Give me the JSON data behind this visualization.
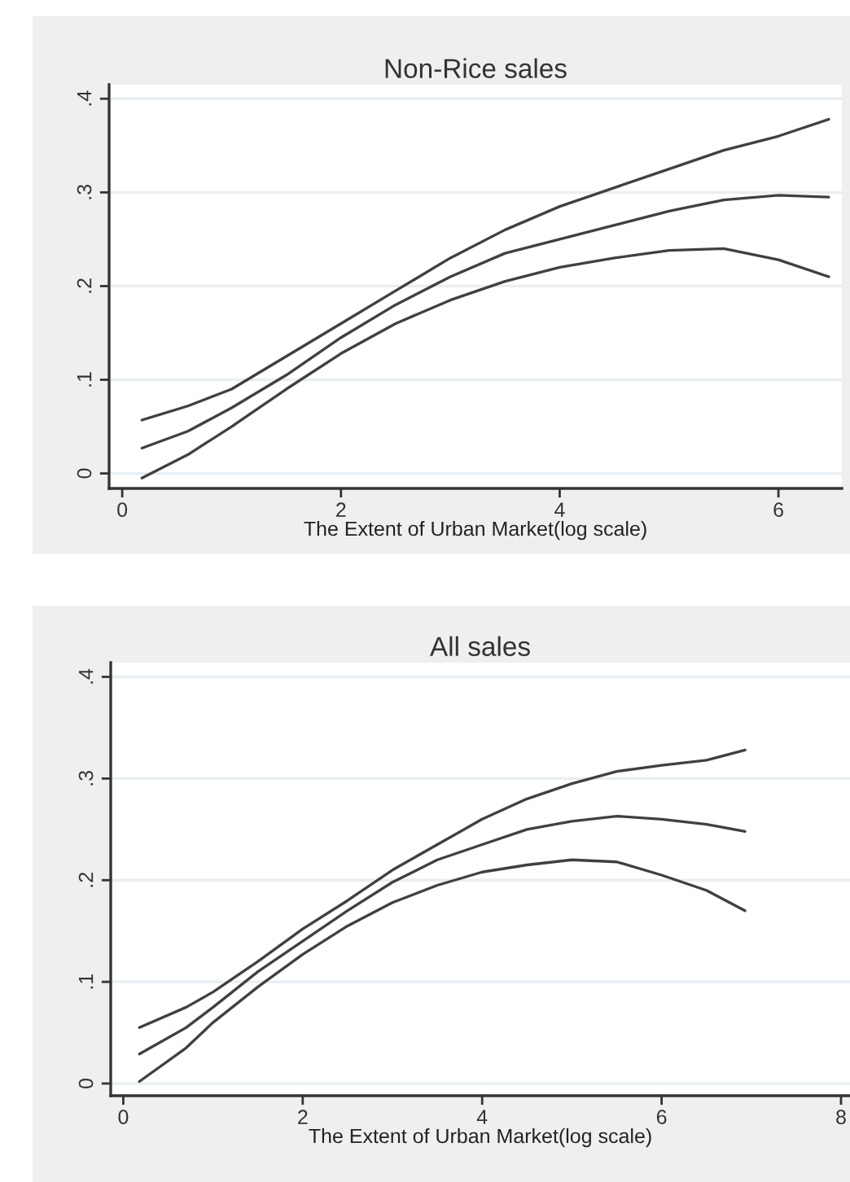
{
  "chart_data": [
    {
      "type": "line",
      "title": "Non-Rice sales",
      "xlabel": "The Extent of Urban Market(log scale)",
      "xlim": [
        -0.12,
        6.58
      ],
      "ylim": [
        -0.016,
        0.415
      ],
      "xticks": [
        0,
        2,
        4,
        6
      ],
      "yticks": [
        {
          "value": 0,
          "label": "0"
        },
        {
          "value": 0.1,
          "label": ".1"
        },
        {
          "value": 0.2,
          "label": ".2"
        },
        {
          "value": 0.3,
          "label": ".3"
        },
        {
          "value": 0.4,
          "label": ".4"
        }
      ],
      "grid": "y",
      "line_style": "solid",
      "marker": "none",
      "series": [
        {
          "color": "#404040",
          "x": [
            0.18,
            0.6,
            1.0,
            1.5,
            2.0,
            2.5,
            3.0,
            3.5,
            4.0,
            4.5,
            5.0,
            5.5,
            6.0,
            6.46
          ],
          "values": [
            0.057,
            0.072,
            0.09,
            0.125,
            0.16,
            0.195,
            0.23,
            0.26,
            0.285,
            0.305,
            0.325,
            0.345,
            0.36,
            0.378
          ]
        },
        {
          "color": "#404040",
          "x": [
            0.18,
            0.6,
            1.0,
            1.5,
            2.0,
            2.5,
            3.0,
            3.5,
            4.0,
            4.5,
            5.0,
            5.5,
            6.0,
            6.46
          ],
          "values": [
            0.027,
            0.045,
            0.07,
            0.105,
            0.145,
            0.18,
            0.21,
            0.235,
            0.25,
            0.265,
            0.28,
            0.292,
            0.297,
            0.295
          ]
        },
        {
          "color": "#404040",
          "x": [
            0.18,
            0.6,
            1.0,
            1.5,
            2.0,
            2.5,
            3.0,
            3.5,
            4.0,
            4.5,
            5.0,
            5.5,
            6.0,
            6.46
          ],
          "values": [
            -0.005,
            0.02,
            0.05,
            0.09,
            0.128,
            0.16,
            0.185,
            0.205,
            0.22,
            0.23,
            0.238,
            0.24,
            0.228,
            0.21
          ]
        }
      ]
    },
    {
      "type": "line",
      "title": "All sales",
      "xlabel": "The Extent of Urban Market(log scale)",
      "xlim": [
        -0.14,
        8.1
      ],
      "ylim": [
        -0.012,
        0.414
      ],
      "xticks": [
        0,
        2,
        4,
        6,
        8
      ],
      "yticks": [
        {
          "value": 0,
          "label": "0"
        },
        {
          "value": 0.1,
          "label": ".1"
        },
        {
          "value": 0.2,
          "label": ".2"
        },
        {
          "value": 0.3,
          "label": ".3"
        },
        {
          "value": 0.4,
          "label": ".4"
        }
      ],
      "grid": "y",
      "line_style": "solid",
      "marker": "none",
      "series": [
        {
          "color": "#404040",
          "x": [
            0.18,
            0.7,
            1.0,
            1.5,
            2.0,
            2.5,
            3.0,
            3.5,
            4.0,
            4.5,
            5.0,
            5.5,
            6.0,
            6.5,
            6.93
          ],
          "values": [
            0.055,
            0.075,
            0.09,
            0.12,
            0.152,
            0.18,
            0.21,
            0.235,
            0.26,
            0.28,
            0.295,
            0.307,
            0.313,
            0.318,
            0.328
          ]
        },
        {
          "color": "#404040",
          "x": [
            0.18,
            0.7,
            1.0,
            1.5,
            2.0,
            2.5,
            3.0,
            3.5,
            4.0,
            4.5,
            5.0,
            5.5,
            6.0,
            6.5,
            6.93
          ],
          "values": [
            0.029,
            0.055,
            0.075,
            0.11,
            0.14,
            0.17,
            0.198,
            0.22,
            0.235,
            0.25,
            0.258,
            0.263,
            0.26,
            0.255,
            0.248
          ]
        },
        {
          "color": "#404040",
          "x": [
            0.18,
            0.7,
            1.0,
            1.5,
            2.0,
            2.5,
            3.0,
            3.5,
            4.0,
            4.5,
            5.0,
            5.5,
            6.0,
            6.5,
            6.93
          ],
          "values": [
            0.002,
            0.035,
            0.06,
            0.095,
            0.127,
            0.155,
            0.178,
            0.195,
            0.208,
            0.215,
            0.22,
            0.218,
            0.205,
            0.19,
            0.17
          ]
        }
      ]
    }
  ]
}
